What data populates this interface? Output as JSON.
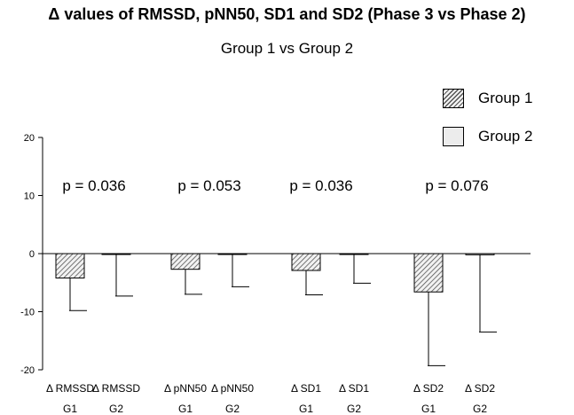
{
  "chart_data": {
    "type": "bar",
    "title": "Δ values of RMSSD, pNN50, SD1 and SD2 (Phase 3 vs Phase 2)",
    "subtitle": "Group 1 vs Group 2",
    "categories": [
      [
        "Δ RMSSD",
        "G1"
      ],
      [
        "Δ RMSSD",
        "G2"
      ],
      [
        "Δ pNN50",
        "G1"
      ],
      [
        "Δ pNN50",
        "G2"
      ],
      [
        "Δ SD1",
        "G1"
      ],
      [
        "Δ SD1",
        "G2"
      ],
      [
        "Δ SD2",
        "G1"
      ],
      [
        "Δ SD2",
        "G2"
      ]
    ],
    "series": [
      {
        "name": "Group 1",
        "fill": "hatched"
      },
      {
        "name": "Group 2",
        "fill": "#ececec"
      }
    ],
    "bars": [
      {
        "series": 0,
        "value": -4.2,
        "error_low": -9.8
      },
      {
        "series": 1,
        "value": -0.1,
        "error_low": -7.3
      },
      {
        "series": 0,
        "value": -2.7,
        "error_low": -7.0
      },
      {
        "series": 1,
        "value": -0.1,
        "error_low": -5.7
      },
      {
        "series": 0,
        "value": -2.9,
        "error_low": -7.1
      },
      {
        "series": 1,
        "value": 0.0,
        "error_low": -5.1
      },
      {
        "series": 0,
        "value": -6.6,
        "error_low": -19.3
      },
      {
        "series": 1,
        "value": -0.2,
        "error_low": -13.5
      }
    ],
    "yticks": [
      20,
      10,
      0,
      -10,
      -20
    ],
    "ylim": [
      -20,
      20
    ],
    "annotations": [
      "p = 0.036",
      "p = 0.053",
      "p = 0.036",
      "p = 0.076"
    ],
    "legend_position": "top-right",
    "grid": false
  }
}
